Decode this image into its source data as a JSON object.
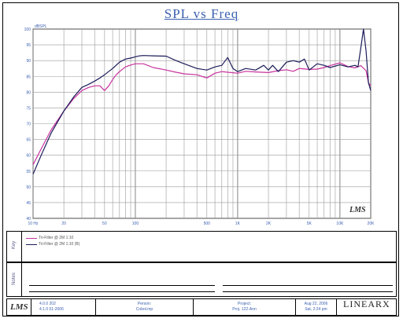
{
  "chart_data": {
    "type": "line",
    "title": "SPL vs Freq",
    "y_unit": "dBSPL",
    "xscale": "log",
    "xlim": [
      10,
      20000
    ],
    "ylim": [
      40,
      100
    ],
    "grid": true,
    "x_ticks": [
      {
        "v": 10,
        "l": "10 Hz"
      },
      {
        "v": 20,
        "l": "20"
      },
      {
        "v": 50,
        "l": "50"
      },
      {
        "v": 100,
        "l": "100"
      },
      {
        "v": 500,
        "l": "500"
      },
      {
        "v": 1000,
        "l": "1K"
      },
      {
        "v": 2000,
        "l": "2K"
      },
      {
        "v": 5000,
        "l": "5K"
      },
      {
        "v": 10000,
        "l": "10K"
      },
      {
        "v": 20000,
        "l": "20K"
      }
    ],
    "y_ticks": [
      40,
      45,
      50,
      55,
      60,
      65,
      70,
      75,
      80,
      85,
      90,
      95,
      100
    ],
    "series": [
      {
        "name": "Tri-Filter @ 2M 1:10",
        "color": "#c8329e",
        "x": [
          10,
          12,
          15,
          20,
          25,
          30,
          35,
          40,
          45,
          50,
          55,
          60,
          65,
          70,
          80,
          90,
          100,
          120,
          150,
          200,
          250,
          300,
          400,
          500,
          600,
          700,
          800,
          1000,
          1200,
          1500,
          2000,
          2500,
          3000,
          3500,
          4000,
          5000,
          6000,
          7000,
          8000,
          10000,
          12000,
          14000,
          16000,
          18000,
          19000,
          20000
        ],
        "y": [
          57,
          62,
          68,
          74,
          78,
          80.5,
          81.5,
          82,
          82,
          80.5,
          82,
          84,
          85.5,
          86.5,
          88,
          88.6,
          89,
          89,
          87.8,
          87,
          86.3,
          85.8,
          85.5,
          84.5,
          86,
          86.5,
          86.3,
          86,
          86.6,
          86.4,
          86.2,
          86.8,
          87.1,
          86.6,
          87.5,
          87.2,
          87.3,
          87.8,
          88.4,
          89.3,
          88.1,
          87.7,
          88.4,
          86.8,
          83,
          82
        ]
      },
      {
        "name": "Tri-Filter @ 2M 1:10 (B)",
        "color": "#1c1c5a",
        "x": [
          10,
          12,
          15,
          20,
          25,
          30,
          35,
          40,
          45,
          50,
          60,
          70,
          80,
          90,
          100,
          110,
          120,
          150,
          200,
          250,
          300,
          400,
          500,
          600,
          700,
          800,
          900,
          1000,
          1200,
          1500,
          1800,
          2000,
          2200,
          2500,
          3000,
          3500,
          4000,
          4500,
          5000,
          6000,
          7000,
          8000,
          10000,
          12000,
          14000,
          15000,
          16000,
          17000,
          18000,
          19000,
          20000
        ],
        "y": [
          54,
          60,
          67,
          74,
          78.5,
          81.5,
          82.5,
          83.5,
          84.5,
          85.5,
          87.5,
          89.5,
          90.5,
          90.8,
          91.2,
          91.5,
          91.6,
          91.5,
          91.4,
          90,
          89,
          87.5,
          87,
          88,
          88.5,
          91,
          87.5,
          86.5,
          87.5,
          87,
          88.5,
          87,
          88.5,
          86.5,
          89.5,
          90,
          89.5,
          90.5,
          87,
          89,
          88.5,
          87.8,
          88.7,
          88,
          88.5,
          88,
          94,
          100,
          93,
          83,
          80.5
        ]
      }
    ]
  },
  "legend_panel": {
    "label": "Key"
  },
  "notes_panel": {
    "label": "Notes"
  },
  "footer": {
    "version_1": "4.0.0 202",
    "version_2": "4.1.0 01-2006",
    "person_label": "Person:",
    "person_value": "Cobol.mp",
    "project_label": "Project:",
    "project_value": "Proj. 122-Ann",
    "date_1": "Aug 22, 2006",
    "date_2": "Sat, 2:24 pm",
    "brand": "LINEARX"
  },
  "logo_text": "LMS"
}
